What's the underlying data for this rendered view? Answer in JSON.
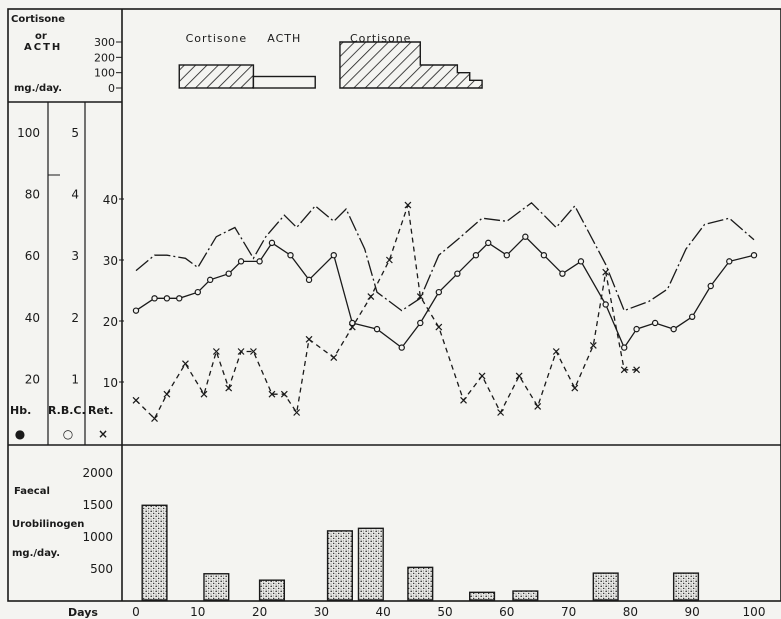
{
  "chart_data": [
    {
      "panel": "treatment",
      "type": "bar",
      "ylabel_lines": [
        "Cortisone",
        "or",
        "ACTH",
        "mg./day."
      ],
      "yticks": [
        300,
        200,
        100,
        0
      ],
      "ylim": [
        0,
        300
      ],
      "xlim": [
        0,
        100
      ],
      "segments": [
        {
          "name": "Cortisone",
          "fill": "hatched",
          "x_start": 7,
          "x_end": 19,
          "value": 150
        },
        {
          "name": "ACTH",
          "fill": "open",
          "x_start": 19,
          "x_end": 29,
          "value": 75
        },
        {
          "name": "Cortisone",
          "fill": "hatched",
          "x_start": 33,
          "x_end": 46,
          "value": 300,
          "taper": [
            [
              46,
              150
            ],
            [
              52,
              150
            ],
            [
              52,
              100
            ],
            [
              54,
              100
            ],
            [
              54,
              50
            ],
            [
              56,
              50
            ],
            [
              56,
              20
            ]
          ]
        }
      ]
    },
    {
      "panel": "blood",
      "type": "line",
      "xlim": [
        0,
        100
      ],
      "axes": [
        {
          "label": "Hb.",
          "symbol": "●",
          "ticks": [
            20,
            40,
            60,
            80,
            100
          ]
        },
        {
          "label": "R.B.C.",
          "symbol": "○",
          "ticks": [
            1,
            2,
            3,
            4,
            5
          ]
        },
        {
          "label": "Ret.",
          "symbol": "×",
          "ticks": [
            10,
            20,
            30,
            40
          ]
        }
      ],
      "series": [
        {
          "name": "Hb.",
          "marker": "none",
          "x": [
            0,
            3,
            5,
            8,
            10,
            13,
            16,
            19,
            21,
            24,
            26,
            29,
            32,
            34,
            37,
            39,
            43,
            46,
            49,
            52,
            56,
            60,
            64,
            68,
            71,
            76,
            79,
            83,
            86,
            89,
            92,
            96,
            100
          ],
          "y": [
            55,
            60,
            60,
            59,
            56,
            66,
            69,
            59,
            66,
            73,
            69,
            76,
            71,
            75,
            62,
            48,
            42,
            46,
            60,
            65,
            72,
            71,
            77,
            69,
            76,
            57,
            42,
            45,
            49,
            62,
            70,
            72,
            65
          ]
        },
        {
          "name": "R.B.C.",
          "marker": "circle",
          "x": [
            0,
            3,
            5,
            7,
            10,
            12,
            15,
            17,
            20,
            22,
            25,
            28,
            32,
            35,
            39,
            43,
            46,
            49,
            52,
            55,
            57,
            60,
            63,
            66,
            69,
            72,
            76,
            79,
            81,
            84,
            87,
            90,
            93,
            96,
            100
          ],
          "y": [
            2.1,
            2.3,
            2.3,
            2.3,
            2.4,
            2.6,
            2.7,
            2.9,
            2.9,
            3.2,
            3.0,
            2.6,
            3.0,
            1.9,
            1.8,
            1.5,
            1.9,
            2.4,
            2.7,
            3.0,
            3.2,
            3.0,
            3.3,
            3.0,
            2.7,
            2.9,
            2.2,
            1.5,
            1.8,
            1.9,
            1.8,
            2.0,
            2.5,
            2.9,
            3.0
          ]
        },
        {
          "name": "Ret.",
          "marker": "cross",
          "x": [
            0,
            3,
            5,
            8,
            11,
            13,
            15,
            17,
            19,
            22,
            24,
            26,
            28,
            32,
            35,
            38,
            41,
            44,
            46,
            49,
            53,
            56,
            59,
            62,
            65,
            68,
            71,
            74,
            76,
            79,
            81
          ],
          "y": [
            7,
            4,
            8,
            13,
            8,
            15,
            9,
            15,
            15,
            8,
            8,
            5,
            17,
            14,
            19,
            24,
            30,
            39,
            24,
            19,
            7,
            11,
            5,
            11,
            6,
            15,
            9,
            16,
            28,
            12,
            12
          ]
        }
      ]
    },
    {
      "panel": "faecal",
      "type": "bar",
      "ylabel_lines": [
        "Faecal",
        "Urobilinogen",
        "mg./day."
      ],
      "yticks": [
        500,
        1000,
        1500,
        2000
      ],
      "ylim": [
        0,
        2000
      ],
      "xlim": [
        0,
        100
      ],
      "xlabel": "Days",
      "xticks": [
        0,
        10,
        20,
        30,
        40,
        50,
        60,
        70,
        80,
        90,
        100
      ],
      "bars": [
        {
          "x_start": 1,
          "x_end": 5,
          "value": 1480
        },
        {
          "x_start": 11,
          "x_end": 15,
          "value": 410
        },
        {
          "x_start": 20,
          "x_end": 24,
          "value": 310
        },
        {
          "x_start": 31,
          "x_end": 35,
          "value": 1080
        },
        {
          "x_start": 36,
          "x_end": 40,
          "value": 1120
        },
        {
          "x_start": 44,
          "x_end": 48,
          "value": 510
        },
        {
          "x_start": 54,
          "x_end": 58,
          "value": 120
        },
        {
          "x_start": 61,
          "x_end": 65,
          "value": 140
        },
        {
          "x_start": 74,
          "x_end": 78,
          "value": 420
        },
        {
          "x_start": 87,
          "x_end": 91,
          "value": 420
        }
      ]
    }
  ]
}
